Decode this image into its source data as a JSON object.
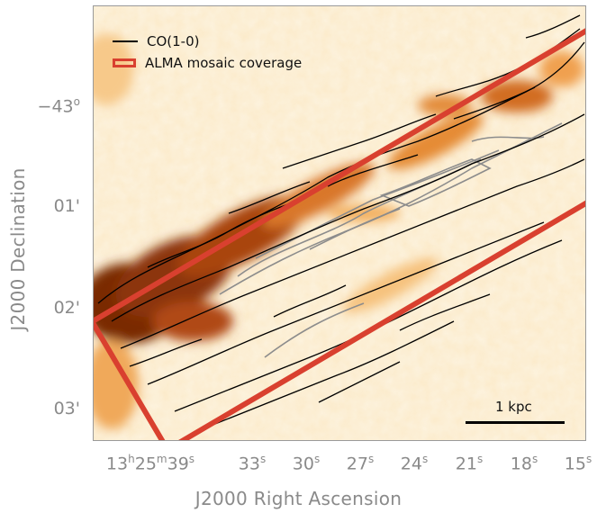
{
  "figure": {
    "x_axis_title": "J2000 Right Ascension",
    "y_axis_title": "J2000 Declination",
    "y_ticks": [
      {
        "label": "−43",
        "sup": "o"
      },
      {
        "label": "01'",
        "sup": ""
      },
      {
        "label": "02'",
        "sup": ""
      },
      {
        "label": "03'",
        "sup": ""
      }
    ],
    "x_ticks": [
      {
        "main": "13",
        "sup1": "h",
        "mid": "25",
        "sup2": "m",
        "end": "39",
        "sup3": "s"
      },
      {
        "main": "33",
        "sup1": "s"
      },
      {
        "main": "30",
        "sup1": "s"
      },
      {
        "main": "27",
        "sup1": "s"
      },
      {
        "main": "24",
        "sup1": "s"
      },
      {
        "main": "21",
        "sup1": "s"
      },
      {
        "main": "18",
        "sup1": "s"
      },
      {
        "main": "15",
        "sup1": "s"
      }
    ],
    "legend": {
      "co_label": "CO(1-0)",
      "alma_label": "ALMA mosaic coverage"
    },
    "scalebar_label": "1 kpc",
    "colors": {
      "alma_box": "#d9402f",
      "background": "#fdf1dc",
      "dust_dark": "#5a1e05",
      "dust_mid": "#c45f12",
      "dust_light": "#f2a64a",
      "co_contour": "#000000",
      "grey_contour": "#8c8c8c"
    }
  }
}
